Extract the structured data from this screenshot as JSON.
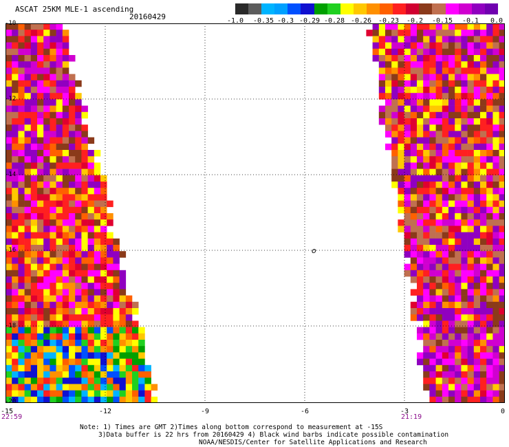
{
  "header": {
    "title": "ASCAT 25KM MLE-1 ascending",
    "date": "20160429"
  },
  "color_scale": {
    "colors": [
      "#202020",
      "#5a5a5a",
      "#00a8ff",
      "#0060ff",
      "#1010e0",
      "#00b000",
      "#40e000",
      "#ffff00",
      "#ffc000",
      "#ff8000",
      "#ff2020",
      "#e00030",
      "#8b3a1a",
      "#c06040",
      "#ff00ff",
      "#c000c0",
      "#9000c0"
    ],
    "tick_labels": [
      "-1.0",
      "-0.35",
      "-0.3",
      "-0.29",
      "-0.28",
      "-0.26",
      "-0.23",
      "-0.2",
      "-0.15",
      "-0.1",
      "0.0"
    ]
  },
  "map": {
    "lat_labels": [
      "-10",
      "-12",
      "-14",
      "-16",
      "-18",
      "-20"
    ],
    "lon_labels": [
      "-15",
      "-12",
      "-9",
      "-6",
      "-3",
      "0"
    ],
    "time_start": "22:59",
    "time_end": "21:19",
    "barb_symbol": "o"
  },
  "notes": {
    "line1": "Note: 1) Times are GMT 2)Times along bottom correspond to measurement at -15S",
    "line2": "3)Data buffer is 22 hrs from 20160429 4) Black wind barbs indicate possible contamination",
    "line3": "NOAA/NESDIS/Center for Satellite Applications and Research"
  }
}
